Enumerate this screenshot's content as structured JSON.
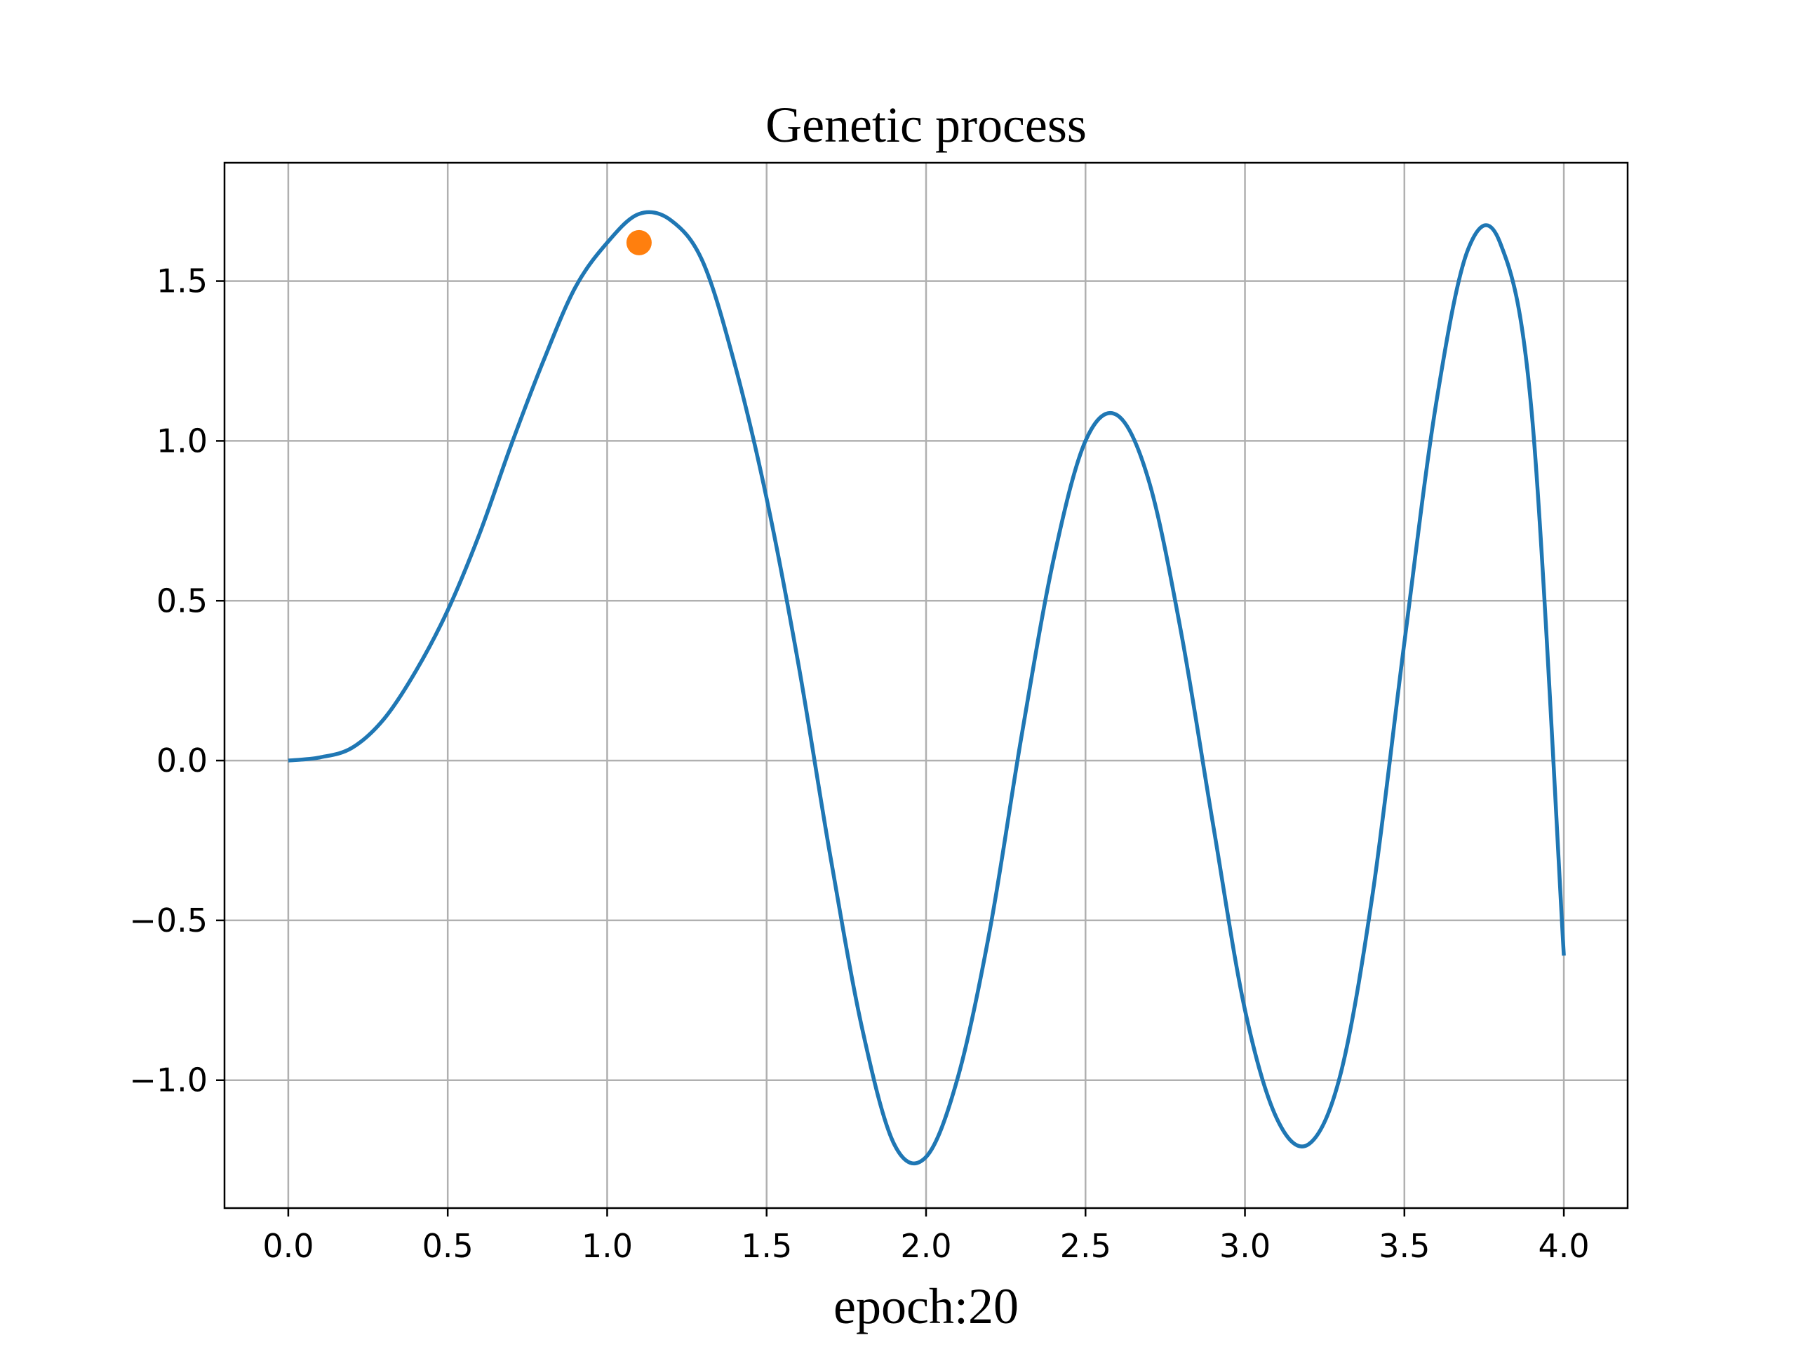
{
  "chart_data": {
    "type": "line",
    "title": "Genetic process",
    "xlabel": "epoch:20",
    "ylabel": "",
    "xlim": [
      -0.2,
      4.2
    ],
    "ylim": [
      -1.4,
      1.87
    ],
    "grid": true,
    "x_ticks": [
      0.0,
      0.5,
      1.0,
      1.5,
      2.0,
      2.5,
      3.0,
      3.5,
      4.0
    ],
    "x_tick_labels": [
      "0.0",
      "0.5",
      "1.0",
      "1.5",
      "2.0",
      "2.5",
      "3.0",
      "3.5",
      "4.0"
    ],
    "y_ticks": [
      -1.0,
      -0.5,
      0.0,
      0.5,
      1.0,
      1.5
    ],
    "y_tick_labels": [
      "−1.0",
      "−0.5",
      "0.0",
      "0.5",
      "1.0",
      "1.5"
    ],
    "series": [
      {
        "type": "line",
        "color": "#1f77b4",
        "x": [
          0.0,
          0.1,
          0.2,
          0.3,
          0.4,
          0.5,
          0.6,
          0.7,
          0.8,
          0.9,
          1.0,
          1.1,
          1.2,
          1.3,
          1.4,
          1.5,
          1.6,
          1.7,
          1.8,
          1.9,
          2.0,
          2.1,
          2.2,
          2.3,
          2.4,
          2.5,
          2.6,
          2.7,
          2.8,
          2.9,
          3.0,
          3.1,
          3.2,
          3.3,
          3.4,
          3.5,
          3.6,
          3.7,
          3.8,
          3.9,
          4.0
        ],
        "y": [
          0.0,
          0.01,
          0.04,
          0.13,
          0.28,
          0.47,
          0.71,
          0.99,
          1.25,
          1.48,
          1.62,
          1.71,
          1.69,
          1.56,
          1.24,
          0.82,
          0.3,
          -0.3,
          -0.84,
          -1.2,
          -1.24,
          -0.99,
          -0.53,
          0.08,
          0.63,
          1.0,
          1.08,
          0.87,
          0.4,
          -0.2,
          -0.78,
          -1.12,
          -1.2,
          -0.98,
          -0.42,
          0.37,
          1.12,
          1.6,
          1.62,
          1.08,
          -0.61
        ]
      },
      {
        "type": "scatter",
        "color": "#ff7f0e",
        "x": [
          1.1
        ],
        "y": [
          1.62
        ]
      }
    ]
  }
}
